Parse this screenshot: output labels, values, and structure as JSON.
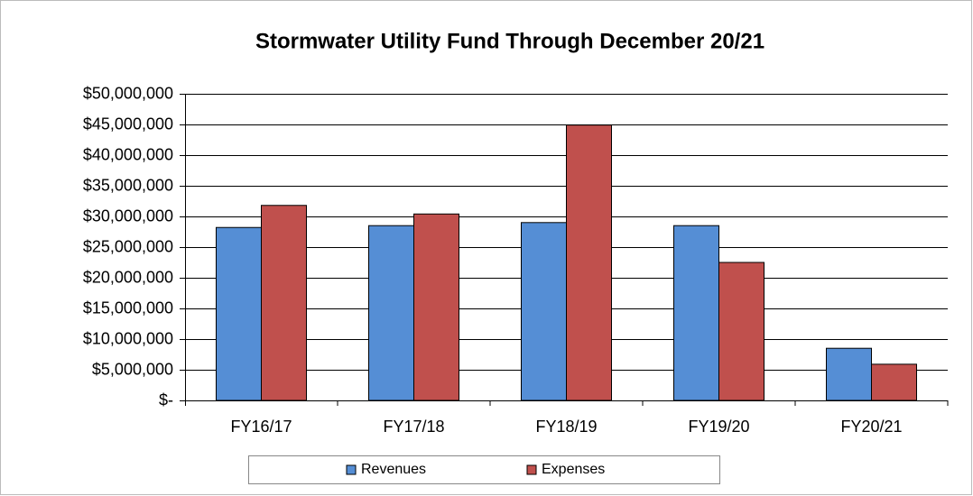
{
  "chart_data": {
    "type": "bar",
    "title": "Stormwater Utility Fund Through December 20/21",
    "categories": [
      "FY16/17",
      "FY17/18",
      "FY18/19",
      "FY19/20",
      "FY20/21"
    ],
    "series": [
      {
        "name": "Revenues",
        "color": "#558ed5",
        "values": [
          28200000,
          28500000,
          29000000,
          28500000,
          8500000
        ]
      },
      {
        "name": "Expenses",
        "color": "#c0504d",
        "values": [
          31800000,
          30400000,
          44900000,
          22500000,
          5900000
        ]
      }
    ],
    "ylim": [
      0,
      50000000
    ],
    "yticks": [
      {
        "value": 0,
        "label": "$-"
      },
      {
        "value": 5000000,
        "label": "$5,000,000"
      },
      {
        "value": 10000000,
        "label": "$10,000,000"
      },
      {
        "value": 15000000,
        "label": "$15,000,000"
      },
      {
        "value": 20000000,
        "label": "$20,000,000"
      },
      {
        "value": 25000000,
        "label": "$25,000,000"
      },
      {
        "value": 30000000,
        "label": "$30,000,000"
      },
      {
        "value": 35000000,
        "label": "$35,000,000"
      },
      {
        "value": 40000000,
        "label": "$40,000,000"
      },
      {
        "value": 45000000,
        "label": "$45,000,000"
      },
      {
        "value": 50000000,
        "label": "$50,000,000"
      }
    ],
    "grid": true,
    "legend": "bottom"
  }
}
